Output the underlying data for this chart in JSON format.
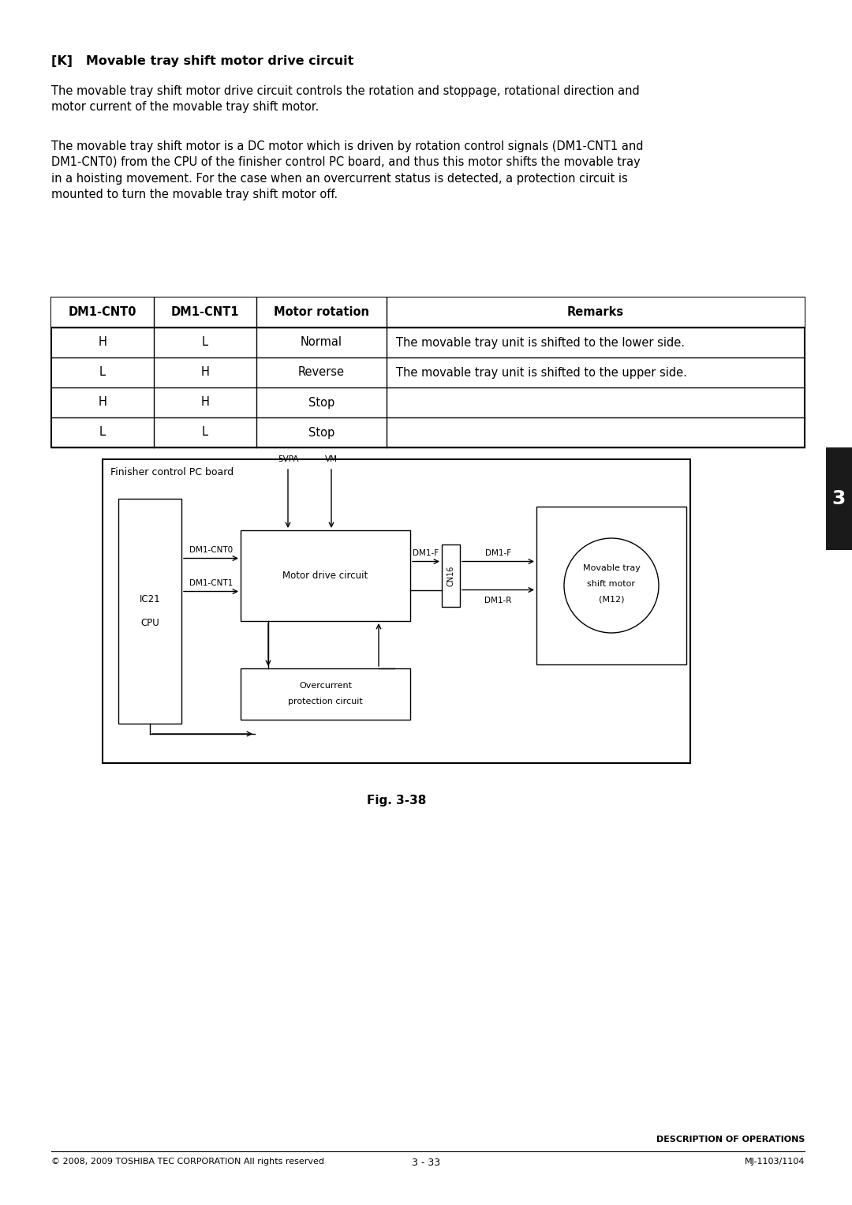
{
  "title_text": "[K]   Movable tray shift motor drive circuit",
  "para1": "The movable tray shift motor drive circuit controls the rotation and stoppage, rotational direction and\nmotor current of the movable tray shift motor.",
  "para2": "The movable tray shift motor is a DC motor which is driven by rotation control signals (DM1-CNT1 and\nDM1-CNT0) from the CPU of the finisher control PC board, and thus this motor shifts the movable tray\nin a hoisting movement. For the case when an overcurrent status is detected, a protection circuit is\nmounted to turn the movable tray shift motor off.",
  "table_headers": [
    "DM1-CNT0",
    "DM1-CNT1",
    "Motor rotation",
    "Remarks"
  ],
  "table_rows": [
    [
      "H",
      "L",
      "Normal",
      "The movable tray unit is shifted to the lower side."
    ],
    [
      "L",
      "H",
      "Reverse",
      "The movable tray unit is shifted to the upper side."
    ],
    [
      "H",
      "H",
      "Stop",
      ""
    ],
    [
      "L",
      "L",
      "Stop",
      ""
    ]
  ],
  "fig_caption": "Fig. 3-38",
  "footer_left": "© 2008, 2009 TOSHIBA TEC CORPORATION All rights reserved",
  "footer_right_line1": "MJ-1103/1104",
  "footer_right_line2": "DESCRIPTION OF OPERATIONS",
  "footer_center": "3 - 33",
  "tab_number": "3",
  "bg_color": "#ffffff",
  "text_color": "#000000",
  "tab_bg": "#1a1a1a"
}
